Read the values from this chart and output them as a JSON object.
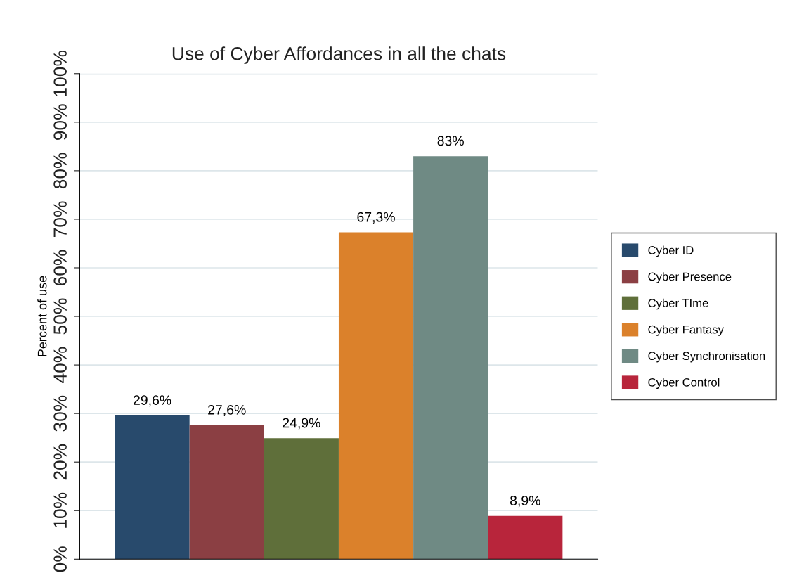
{
  "chart_data": {
    "type": "bar",
    "title": "Use of Cyber Affordances in all the chats",
    "ylabel": "Percent of use",
    "categories": [
      null
    ],
    "series": [
      {
        "name": "Cyber ID",
        "color": "#284a6c",
        "values": [
          29.6
        ],
        "value_labels": [
          "29,6%"
        ]
      },
      {
        "name": "Cyber Presence",
        "color": "#8b3f43",
        "values": [
          27.6
        ],
        "value_labels": [
          "27,6%"
        ]
      },
      {
        "name": "Cyber TIme",
        "color": "#5f6f3a",
        "values": [
          24.9
        ],
        "value_labels": [
          "24,9%"
        ]
      },
      {
        "name": "Cyber Fantasy",
        "color": "#db812b",
        "values": [
          67.3
        ],
        "value_labels": [
          "67,3%"
        ]
      },
      {
        "name": "Cyber Synchronisation",
        "color": "#6f8a84",
        "values": [
          83
        ],
        "value_labels": [
          "83%"
        ]
      },
      {
        "name": "Cyber Control",
        "color": "#b8253b",
        "values": [
          8.9
        ],
        "value_labels": [
          "8,9%"
        ]
      }
    ],
    "ylim": [
      0,
      100
    ],
    "yticks": [
      {
        "value": 0,
        "label": "0%"
      },
      {
        "value": 10,
        "label": "10%"
      },
      {
        "value": 20,
        "label": "20%"
      },
      {
        "value": 30,
        "label": "30%"
      },
      {
        "value": 40,
        "label": "40%"
      },
      {
        "value": 50,
        "label": "50%"
      },
      {
        "value": 60,
        "label": "60%"
      },
      {
        "value": 70,
        "label": "70%"
      },
      {
        "value": 80,
        "label": "80%"
      },
      {
        "value": 90,
        "label": "90%"
      },
      {
        "value": 100,
        "label": "100%"
      }
    ],
    "grid": "y",
    "legend": "right",
    "tick_labels": "y"
  }
}
